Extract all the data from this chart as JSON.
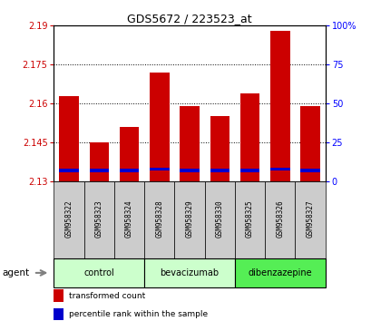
{
  "title": "GDS5672 / 223523_at",
  "samples": [
    "GSM958322",
    "GSM958323",
    "GSM958324",
    "GSM958328",
    "GSM958329",
    "GSM958330",
    "GSM958325",
    "GSM958326",
    "GSM958327"
  ],
  "transformed_counts": [
    2.163,
    2.145,
    2.151,
    2.172,
    2.159,
    2.155,
    2.164,
    2.188,
    2.159
  ],
  "percentile_ranks": [
    7,
    7,
    7,
    8,
    7,
    7,
    7,
    8,
    7
  ],
  "bar_base": 2.13,
  "ylim_min": 2.13,
  "ylim_max": 2.19,
  "yticks": [
    2.13,
    2.145,
    2.16,
    2.175,
    2.19
  ],
  "right_yticks": [
    0,
    25,
    50,
    75,
    100
  ],
  "bar_color": "#cc0000",
  "blue_color": "#0000cc",
  "groups": [
    {
      "label": "control",
      "indices": [
        0,
        1,
        2
      ],
      "color": "#ccffcc"
    },
    {
      "label": "bevacizumab",
      "indices": [
        3,
        4,
        5
      ],
      "color": "#ccffcc"
    },
    {
      "label": "dibenzazepine",
      "indices": [
        6,
        7,
        8
      ],
      "color": "#55ee55"
    }
  ],
  "agent_label": "agent",
  "legend_items": [
    {
      "label": "transformed count",
      "color": "#cc0000"
    },
    {
      "label": "percentile rank within the sample",
      "color": "#0000cc"
    }
  ],
  "tick_label_color": "#cc0000",
  "right_tick_color": "#0000ff",
  "bar_width": 0.65,
  "sample_label_bg": "#cccccc"
}
